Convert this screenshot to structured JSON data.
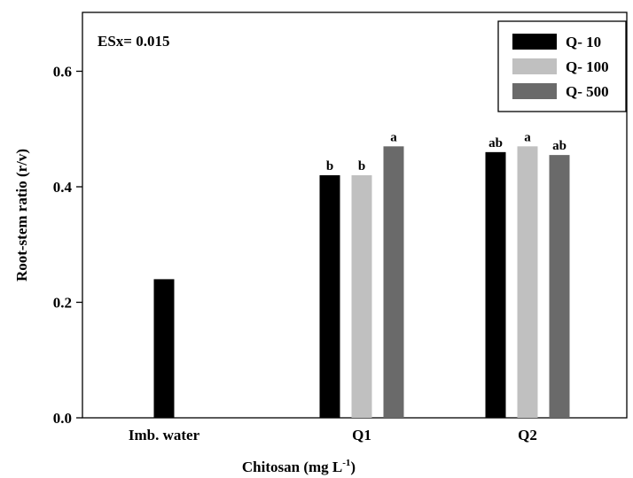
{
  "chart_data": {
    "type": "bar",
    "xlabel_main": "Chitosan (mg L",
    "xlabel_sup": "-1",
    "xlabel_close": ")",
    "ylabel": "Root-stem ratio (r/v)",
    "ylim": [
      0,
      0.7
    ],
    "yticks": [
      "0.0",
      "0.2",
      "0.4",
      "0.6"
    ],
    "ytick_values": [
      0,
      0.2,
      0.4,
      0.6
    ],
    "annotation": "ESx= 0.015",
    "legend_position": "top-right",
    "grid": false,
    "categories": [
      "Imb. water",
      "Q1",
      "Q2"
    ],
    "series": [
      {
        "name": "Q- 10",
        "color": "#000000",
        "values": [
          0.24,
          0.42,
          0.46
        ],
        "labels": [
          "",
          "b",
          "ab"
        ]
      },
      {
        "name": "Q- 100",
        "color": "#c0c0c0",
        "values": [
          null,
          0.42,
          0.47
        ],
        "labels": [
          "",
          "b",
          "a"
        ]
      },
      {
        "name": "Q- 500",
        "color": "#6a6a6a",
        "values": [
          null,
          0.47,
          0.455
        ],
        "labels": [
          "",
          "a",
          "ab"
        ]
      }
    ]
  }
}
